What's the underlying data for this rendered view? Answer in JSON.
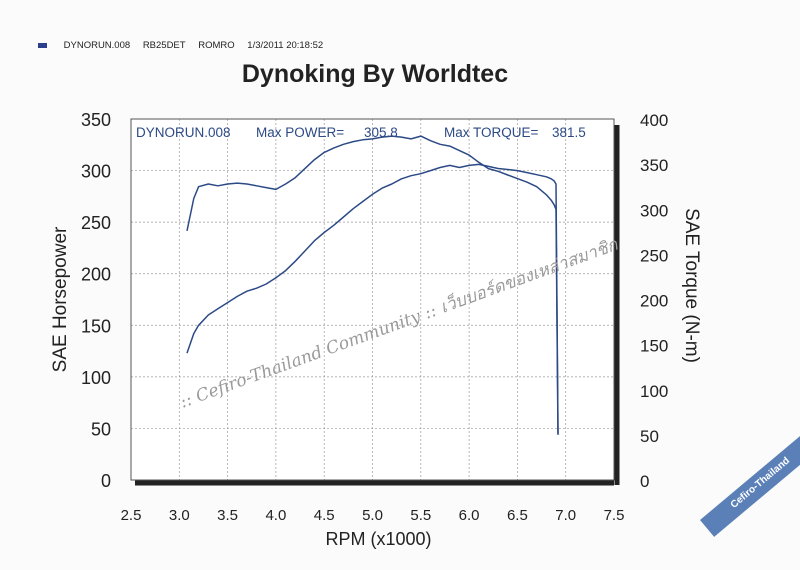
{
  "header": {
    "run_id": "DYNORUN.008",
    "engine": "RB25DET",
    "operator": "ROMRO",
    "datetime": "1/3/2011 20:18:52",
    "legend_color": "#2c3f8c"
  },
  "watermark": {
    "text": ":: Cefiro-Thailand Community :: เว็บบอร์ดของเหล่าสมาชิก"
  },
  "badge": {
    "text": "Cefiro-Thailand",
    "color": "#5b80b8"
  },
  "chart_data": {
    "type": "line",
    "title": "Dynoking By Worldtec",
    "annotation": {
      "run": "DYNORUN.008",
      "max_power_label": "Max POWER=",
      "max_power_value": "305.8",
      "max_torque_label": "Max TORQUE=",
      "max_torque_value": "381.5"
    },
    "xlabel": "RPM (x1000)",
    "ylabel": "SAE Horsepower",
    "y2label": "SAE Torque (N-m)",
    "xlim": [
      2.5,
      7.5
    ],
    "ylim": [
      0,
      350
    ],
    "y2lim": [
      0,
      400
    ],
    "xticks": [
      "2.5",
      "3.0",
      "3.5",
      "4.0",
      "4.5",
      "5.0",
      "5.5",
      "6.0",
      "6.5",
      "7.0",
      "7.5"
    ],
    "yticks": [
      "0",
      "50",
      "100",
      "150",
      "200",
      "250",
      "300",
      "350"
    ],
    "y2ticks": [
      "0",
      "50",
      "100",
      "150",
      "200",
      "250",
      "300",
      "350",
      "400"
    ],
    "grid": true,
    "line_color": "#2c4a86",
    "series": [
      {
        "axis": "left",
        "x": [
          3.08,
          3.15,
          3.2,
          3.3,
          3.4,
          3.5,
          3.6,
          3.7,
          3.8,
          3.9,
          4.0,
          4.1,
          4.2,
          4.3,
          4.4,
          4.5,
          4.6,
          4.7,
          4.8,
          4.9,
          5.0,
          5.1,
          5.2,
          5.3,
          5.4,
          5.5,
          5.6,
          5.7,
          5.8,
          5.9,
          6.0,
          6.1,
          6.2,
          6.3,
          6.4,
          6.5,
          6.6,
          6.7,
          6.8,
          6.85,
          6.88,
          6.9,
          6.92
        ],
        "values": [
          123,
          142,
          150,
          160,
          166,
          172,
          178,
          183,
          186,
          190,
          196,
          203,
          212,
          222,
          232,
          240,
          247,
          255,
          263,
          270,
          277,
          283,
          287,
          292,
          295,
          297,
          300,
          303,
          305,
          303,
          305,
          306,
          304,
          302,
          301,
          300,
          298,
          296,
          294,
          292,
          290,
          287,
          45
        ]
      },
      {
        "axis": "right",
        "x": [
          3.08,
          3.15,
          3.2,
          3.3,
          3.4,
          3.5,
          3.6,
          3.7,
          3.8,
          3.9,
          4.0,
          4.1,
          4.2,
          4.3,
          4.4,
          4.5,
          4.6,
          4.7,
          4.8,
          4.9,
          5.0,
          5.1,
          5.2,
          5.3,
          5.4,
          5.5,
          5.6,
          5.7,
          5.8,
          5.9,
          6.0,
          6.1,
          6.2,
          6.3,
          6.4,
          6.5,
          6.6,
          6.7,
          6.8,
          6.85,
          6.88,
          6.9,
          6.92
        ],
        "values": [
          276,
          312,
          325,
          328,
          326,
          328,
          329,
          328,
          326,
          324,
          322,
          328,
          335,
          345,
          355,
          363,
          368,
          372,
          375,
          377,
          378,
          380,
          381,
          380,
          378,
          381,
          376,
          372,
          370,
          365,
          360,
          352,
          345,
          342,
          338,
          334,
          330,
          325,
          316,
          310,
          305,
          300,
          50
        ]
      }
    ]
  }
}
